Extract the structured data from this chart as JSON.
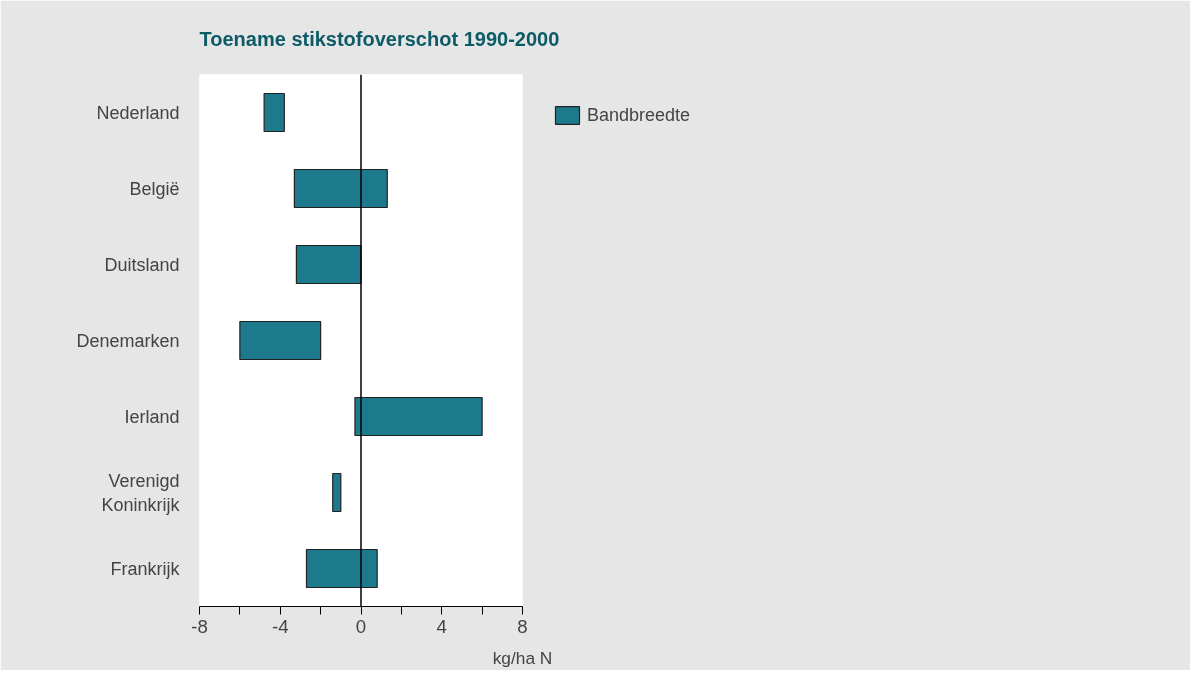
{
  "chart_data": {
    "type": "bar",
    "orientation": "horizontal",
    "title": "Toename stikstofoverschot 1990-2000",
    "xlabel": "kg/ha N",
    "categories": [
      "Nederland",
      "België",
      "Duitsland",
      "Denemarken",
      "Ierland",
      "Verenigd Koninkrijk",
      "Frankrijk"
    ],
    "series": [
      {
        "name": "Bandbreedte",
        "color": "#1d7a8c",
        "values": [
          1.0,
          4.6,
          3.2,
          4.0,
          6.3,
          0.4,
          3.5
        ],
        "base": [
          -4.8,
          -3.3,
          -3.2,
          -6.0,
          -0.3,
          -1.4,
          -2.7
        ]
      }
    ],
    "xlim": [
      -8,
      8
    ],
    "xticks": [
      -8,
      {
        "value": -6,
        "label": null
      },
      -4,
      {
        "value": -2,
        "label": null
      },
      0,
      {
        "value": 2,
        "label": null
      },
      4,
      {
        "value": 6,
        "label": null
      },
      8
    ],
    "ref_lines": [
      {
        "axis": "x",
        "value": 0,
        "label": null,
        "color": "#000000"
      }
    ],
    "grid": false,
    "legend": "top right"
  }
}
